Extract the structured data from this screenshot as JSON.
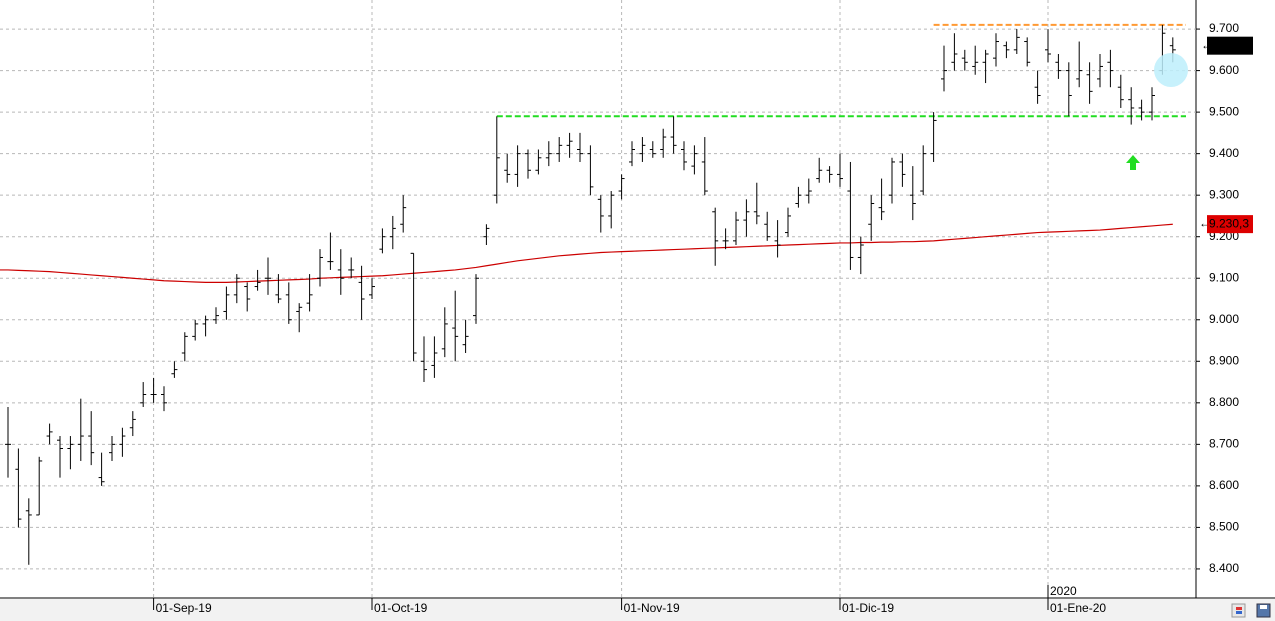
{
  "chart_data": {
    "type": "ohlc",
    "color": "#000000",
    "categories": [
      null,
      null,
      null,
      null,
      null,
      null,
      null,
      null,
      null,
      null,
      null,
      null,
      null,
      null,
      "01-Sep-19",
      null,
      null,
      null,
      null,
      null,
      null,
      null,
      null,
      null,
      null,
      null,
      null,
      null,
      null,
      null,
      null,
      null,
      null,
      null,
      null,
      "01-Oct-19",
      null,
      null,
      null,
      null,
      null,
      null,
      null,
      null,
      null,
      null,
      null,
      null,
      null,
      null,
      null,
      null,
      null,
      null,
      null,
      null,
      null,
      null,
      null,
      "01-Nov-19",
      null,
      null,
      null,
      null,
      null,
      null,
      null,
      null,
      null,
      null,
      null,
      null,
      null,
      null,
      null,
      null,
      null,
      null,
      null,
      null,
      "01-Dic-19",
      null,
      null,
      null,
      null,
      null,
      null,
      null,
      null,
      null,
      null,
      null,
      null,
      null,
      null,
      null,
      null,
      null,
      null,
      null,
      "01-Ene-20",
      null,
      null,
      null,
      null,
      null,
      null,
      null,
      null,
      null,
      null,
      null,
      null
    ],
    "year_label": {
      "index": 100,
      "label": "2020"
    },
    "ohlc": [
      [
        8700,
        8790,
        8620,
        8700
      ],
      [
        8640,
        8690,
        8500,
        8520
      ],
      [
        8540,
        8570,
        8410,
        8530
      ],
      [
        8530,
        8670,
        8530,
        8660
      ],
      [
        8720,
        8750,
        8700,
        8730
      ],
      [
        8710,
        8720,
        8620,
        8690
      ],
      [
        8690,
        8720,
        8640,
        8700
      ],
      [
        8700,
        8810,
        8660,
        8720
      ],
      [
        8720,
        8780,
        8650,
        8680
      ],
      [
        8620,
        8680,
        8600,
        8610
      ],
      [
        8680,
        8720,
        8660,
        8700
      ],
      [
        8700,
        8740,
        8670,
        8720
      ],
      [
        8740,
        8780,
        8720,
        8760
      ],
      [
        8800,
        8850,
        8790,
        8820
      ],
      [
        8820,
        8860,
        8800,
        8820
      ],
      [
        8820,
        8840,
        8780,
        8800
      ],
      [
        8870,
        8900,
        8860,
        8880
      ],
      [
        8920,
        8970,
        8900,
        8960
      ],
      [
        8960,
        9000,
        8950,
        8990
      ],
      [
        8990,
        9010,
        8960,
        9000
      ],
      [
        9000,
        9030,
        8990,
        9010
      ],
      [
        9020,
        9080,
        9000,
        9060
      ],
      [
        9060,
        9110,
        9040,
        9100
      ],
      [
        9080,
        9090,
        9020,
        9050
      ],
      [
        9080,
        9120,
        9070,
        9090
      ],
      [
        9100,
        9150,
        9060,
        9100
      ],
      [
        9060,
        9110,
        9040,
        9050
      ],
      [
        9060,
        9090,
        8990,
        9000
      ],
      [
        9020,
        9040,
        8970,
        9030
      ],
      [
        9040,
        9110,
        9020,
        9060
      ],
      [
        9100,
        9170,
        9080,
        9150
      ],
      [
        9140,
        9210,
        9120,
        9140
      ],
      [
        9120,
        9170,
        9060,
        9100
      ],
      [
        9120,
        9150,
        9100,
        9120
      ],
      [
        9090,
        9130,
        9000,
        9050
      ],
      [
        9060,
        9100,
        9050,
        9080
      ],
      [
        9170,
        9220,
        9160,
        9200
      ],
      [
        9200,
        9250,
        9170,
        9220
      ],
      [
        9230,
        9300,
        9210,
        9270
      ],
      [
        9160,
        9160,
        8900,
        8920
      ],
      [
        8900,
        8960,
        8850,
        8880
      ],
      [
        8890,
        8960,
        8860,
        8920
      ],
      [
        8930,
        9030,
        8910,
        8990
      ],
      [
        8980,
        9070,
        8900,
        8960
      ],
      [
        8940,
        9000,
        8920,
        8960
      ],
      [
        9010,
        9110,
        8990,
        9100
      ],
      [
        9200,
        9230,
        9180,
        9220
      ],
      [
        9300,
        9490,
        9280,
        9390
      ],
      [
        9360,
        9400,
        9330,
        9350
      ],
      [
        9350,
        9420,
        9320,
        9400
      ],
      [
        9400,
        9410,
        9340,
        9360
      ],
      [
        9360,
        9410,
        9350,
        9390
      ],
      [
        9390,
        9430,
        9370,
        9400
      ],
      [
        9400,
        9440,
        9380,
        9420
      ],
      [
        9420,
        9450,
        9390,
        9430
      ],
      [
        9410,
        9450,
        9380,
        9400
      ],
      [
        9400,
        9420,
        9300,
        9320
      ],
      [
        9290,
        9300,
        9210,
        9250
      ],
      [
        9250,
        9310,
        9220,
        9300
      ],
      [
        9310,
        9350,
        9290,
        9340
      ],
      [
        9380,
        9430,
        9370,
        9410
      ],
      [
        9400,
        9440,
        9380,
        9420
      ],
      [
        9410,
        9430,
        9390,
        9400
      ],
      [
        9410,
        9460,
        9390,
        9440
      ],
      [
        9440,
        9490,
        9400,
        9420
      ],
      [
        9410,
        9430,
        9360,
        9380
      ],
      [
        9370,
        9420,
        9350,
        9400
      ],
      [
        9380,
        9440,
        9300,
        9310
      ],
      [
        9260,
        9270,
        9130,
        9190
      ],
      [
        9190,
        9220,
        9170,
        9190
      ],
      [
        9190,
        9260,
        9180,
        9240
      ],
      [
        9240,
        9290,
        9200,
        9260
      ],
      [
        9260,
        9330,
        9230,
        9250
      ],
      [
        9230,
        9260,
        9190,
        9200
      ],
      [
        9190,
        9240,
        9150,
        9180
      ],
      [
        9210,
        9270,
        9200,
        9250
      ],
      [
        9280,
        9320,
        9270,
        9300
      ],
      [
        9300,
        9340,
        9280,
        9310
      ],
      [
        9340,
        9390,
        9330,
        9360
      ],
      [
        9360,
        9370,
        9330,
        9350
      ],
      [
        9350,
        9400,
        9320,
        9340
      ],
      [
        9310,
        9380,
        9120,
        9150
      ],
      [
        9150,
        9200,
        9110,
        9180
      ],
      [
        9230,
        9300,
        9190,
        9280
      ],
      [
        9270,
        9340,
        9240,
        9260
      ],
      [
        9300,
        9390,
        9280,
        9380
      ],
      [
        9380,
        9400,
        9320,
        9350
      ],
      [
        9300,
        9370,
        9240,
        9280
      ],
      [
        9310,
        9420,
        9300,
        9400
      ],
      [
        9400,
        9500,
        9380,
        9480
      ],
      [
        9580,
        9660,
        9550,
        9600
      ],
      [
        9620,
        9690,
        9600,
        9640
      ],
      [
        9630,
        9650,
        9600,
        9620
      ],
      [
        9610,
        9660,
        9590,
        9620
      ],
      [
        9620,
        9650,
        9570,
        9640
      ],
      [
        9630,
        9690,
        9610,
        9670
      ],
      [
        9660,
        9670,
        9630,
        9650
      ],
      [
        9650,
        9700,
        9640,
        9680
      ],
      [
        9670,
        9680,
        9610,
        9620
      ],
      [
        9560,
        9600,
        9520,
        9540
      ],
      [
        9650,
        9700,
        9620,
        9640
      ],
      [
        9620,
        9640,
        9580,
        9600
      ],
      [
        9600,
        9620,
        9490,
        9540
      ],
      [
        9580,
        9670,
        9560,
        9600
      ],
      [
        9590,
        9620,
        9520,
        9550
      ],
      [
        9580,
        9640,
        9560,
        9610
      ],
      [
        9620,
        9650,
        9560,
        9600
      ],
      [
        9560,
        9590,
        9510,
        9530
      ],
      [
        9530,
        9560,
        9470,
        9510
      ],
      [
        9510,
        9530,
        9480,
        9500
      ],
      [
        9500,
        9560,
        9480,
        9540
      ],
      [
        9600,
        9710,
        9590,
        9690
      ],
      [
        9660,
        9680,
        9620,
        9650
      ]
    ],
    "moving_average": {
      "color": "#cc0000",
      "values": [
        9120,
        9119,
        9118,
        9117,
        9116,
        9114,
        9112,
        9110,
        9108,
        9106,
        9104,
        9102,
        9100,
        9098,
        9096,
        9094,
        9093,
        9092,
        9091,
        9090,
        9090,
        9090,
        9091,
        9092,
        9093,
        9094,
        9095,
        9096,
        9097,
        9098,
        9100,
        9101,
        9102,
        9103,
        9104,
        9105,
        9106,
        9108,
        9110,
        9112,
        9114,
        9116,
        9118,
        9120,
        9123,
        9126,
        9130,
        9134,
        9138,
        9142,
        9145,
        9148,
        9151,
        9154,
        9156,
        9158,
        9160,
        9162,
        9163,
        9164,
        9165,
        9166,
        9167,
        9168,
        9169,
        9170,
        9171,
        9172,
        9173,
        9174,
        9175,
        9176,
        9177,
        9178,
        9179,
        9180,
        9181,
        9182,
        9183,
        9184,
        9185,
        9185,
        9186,
        9186,
        9187,
        9187,
        9188,
        9188,
        9189,
        9190,
        9192,
        9194,
        9196,
        9198,
        9200,
        9202,
        9204,
        9206,
        9208,
        9210,
        9211,
        9212,
        9213,
        9214,
        9215,
        9216,
        9218,
        9220,
        9222,
        9224,
        9226,
        9228,
        9230
      ]
    },
    "levels": [
      {
        "value": 9490,
        "from": 47,
        "color": "#22dd22"
      },
      {
        "value": 9710,
        "from": 89,
        "color": "#ff9933"
      }
    ],
    "last_price": {
      "value": 9660,
      "color": "#000000"
    },
    "ma_label": {
      "value": 9230.3,
      "label": "9.230,3",
      "color": "#dd0000"
    },
    "ylim": [
      8330,
      9770
    ],
    "yticks": [
      {
        "value": 8400,
        "label": "8.400"
      },
      {
        "value": 8500,
        "label": "8.500"
      },
      {
        "value": 8600,
        "label": "8.600"
      },
      {
        "value": 8700,
        "label": "8.700"
      },
      {
        "value": 8800,
        "label": "8.800"
      },
      {
        "value": 8900,
        "label": "8.900"
      },
      {
        "value": 9000,
        "label": "9.000"
      },
      {
        "value": 9100,
        "label": "9.100"
      },
      {
        "value": 9200,
        "label": "9.200"
      },
      {
        "value": 9300,
        "label": "9.300"
      },
      {
        "value": 9400,
        "label": "9.400"
      },
      {
        "value": 9500,
        "label": "9.500"
      },
      {
        "value": 9600,
        "label": "9.600"
      },
      {
        "value": 9700,
        "label": "9.700"
      }
    ],
    "grid": true
  }
}
